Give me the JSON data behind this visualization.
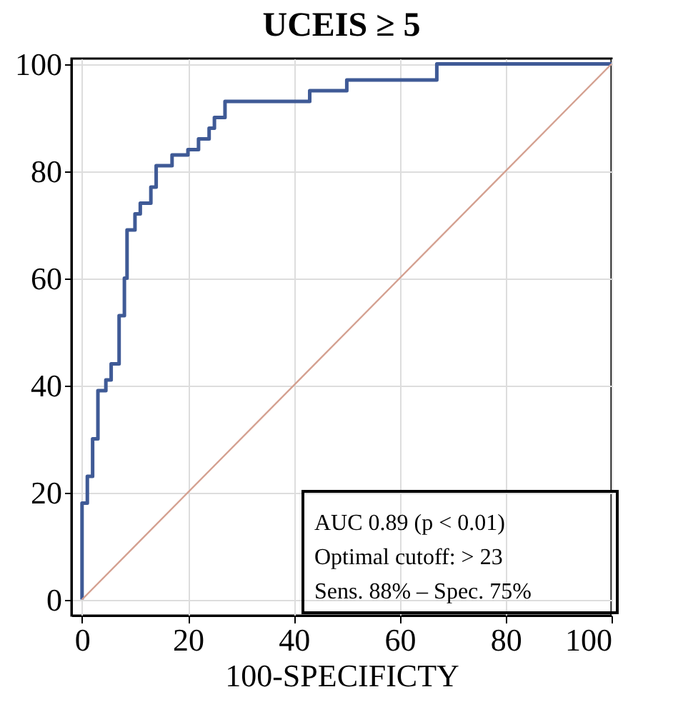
{
  "chart_data": {
    "type": "step",
    "title": "UCEIS ≥ 5",
    "xlabel": "100-SPECIFICTY",
    "xlim": [
      -2,
      100
    ],
    "xticks": [
      0,
      20,
      40,
      60,
      80,
      100
    ],
    "ylim": [
      -3,
      101
    ],
    "yticks": [
      0,
      20,
      40,
      60,
      80,
      100
    ],
    "grid": true,
    "marker": "none",
    "line_style": "solid",
    "series": [
      {
        "color": "#3f5a96",
        "x": [
          0,
          0,
          1,
          2,
          3,
          4.5,
          5.5,
          7,
          8,
          8.5,
          10,
          11,
          13,
          14,
          16,
          17,
          20,
          22,
          24,
          25,
          27,
          42,
          43,
          48,
          50,
          65,
          67,
          100
        ],
        "values": [
          0,
          18,
          23,
          30,
          39,
          41,
          44,
          53,
          60,
          69,
          72,
          74,
          77,
          81,
          81,
          83,
          84,
          86,
          88,
          90,
          93,
          93,
          95,
          95,
          97,
          97,
          100,
          100
        ]
      },
      {
        "type": "line",
        "color": "#d4a090",
        "x": [
          0,
          100
        ],
        "values": [
          0,
          100
        ]
      }
    ],
    "annotations": [
      "AUC 0.89 (p < 0.01)",
      "Optimal cutoff: > 23",
      "Sens. 88% – Spec. 75%"
    ]
  }
}
